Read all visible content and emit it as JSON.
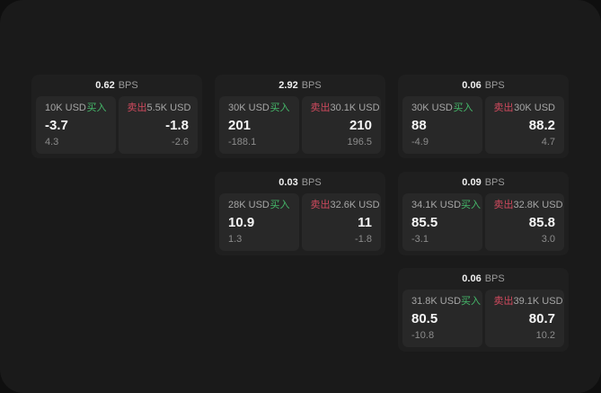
{
  "labels": {
    "bps": "BPS",
    "buy": "买入",
    "sell": "卖出"
  },
  "colors": {
    "buy_green": "#45b86a",
    "sell_red": "#d04a5e",
    "page_bg": "#1a1a1a",
    "card_bg": "#1f1f1f",
    "panel_bg": "#282828"
  },
  "cards": [
    {
      "bps": "0.62",
      "buy": {
        "amount": "10K USD",
        "price": "-3.7",
        "change": "4.3"
      },
      "sell": {
        "amount": "5.5K USD",
        "price": "-1.8",
        "change": "-2.6"
      }
    },
    {
      "bps": "2.92",
      "buy": {
        "amount": "30K USD",
        "price": "201",
        "change": "-188.1"
      },
      "sell": {
        "amount": "30.1K USD",
        "price": "210",
        "change": "196.5"
      }
    },
    {
      "bps": "0.06",
      "buy": {
        "amount": "30K USD",
        "price": "88",
        "change": "-4.9"
      },
      "sell": {
        "amount": "30K USD",
        "price": "88.2",
        "change": "4.7"
      }
    },
    {
      "bps": "0.03",
      "buy": {
        "amount": "28K USD",
        "price": "10.9",
        "change": "1.3"
      },
      "sell": {
        "amount": "32.6K USD",
        "price": "11",
        "change": "-1.8"
      }
    },
    {
      "bps": "0.09",
      "buy": {
        "amount": "34.1K USD",
        "price": "85.5",
        "change": "-3.1"
      },
      "sell": {
        "amount": "32.8K USD",
        "price": "85.8",
        "change": "3.0"
      }
    },
    {
      "bps": "0.06",
      "buy": {
        "amount": "31.8K USD",
        "price": "80.5",
        "change": "-10.8"
      },
      "sell": {
        "amount": "39.1K USD",
        "price": "80.7",
        "change": "10.2"
      }
    }
  ]
}
